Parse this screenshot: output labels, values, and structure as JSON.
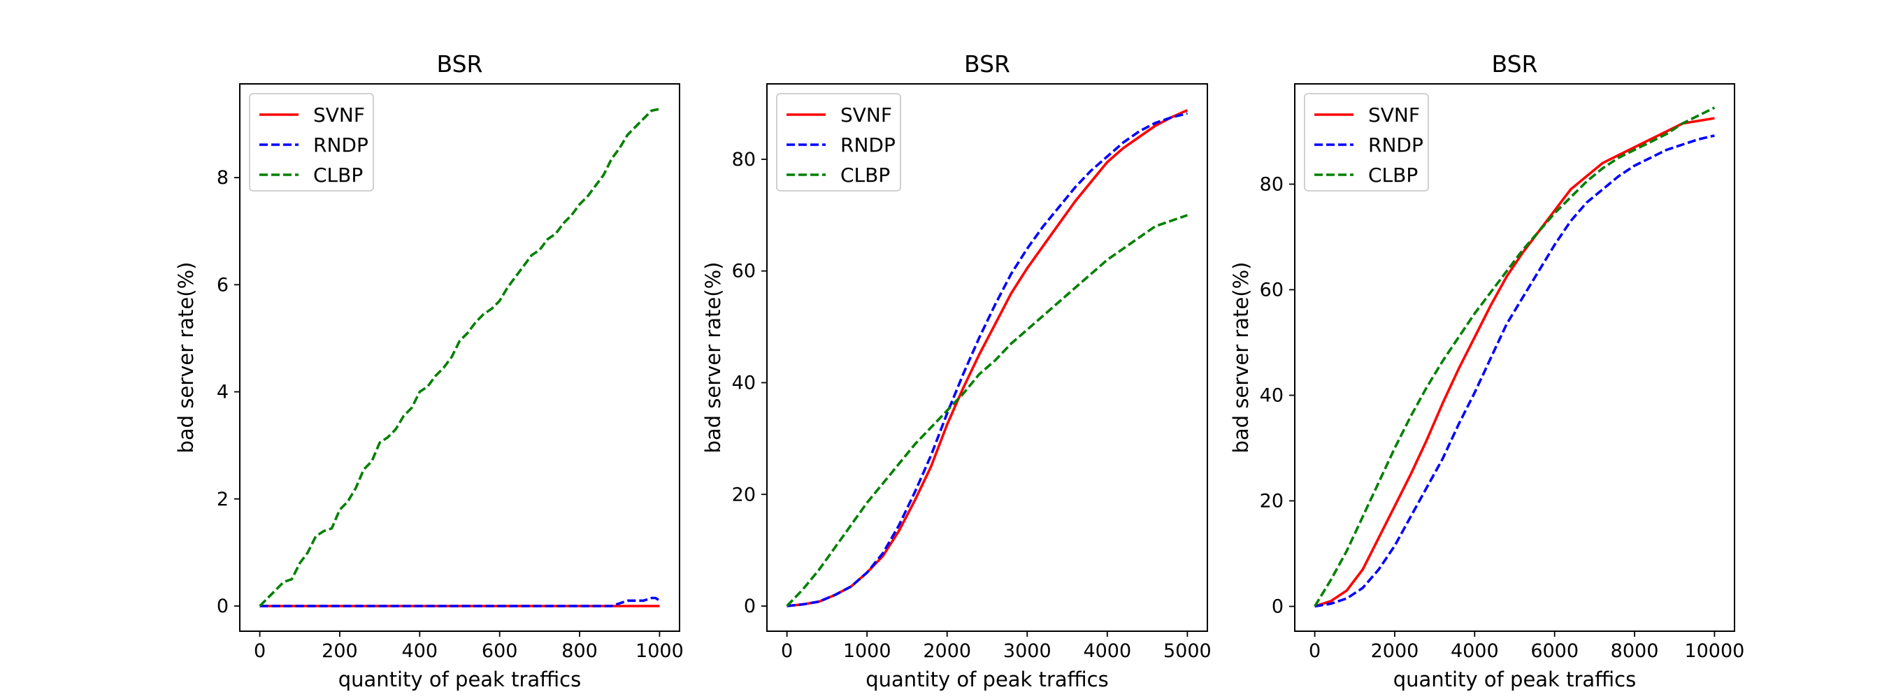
{
  "chart_data": [
    {
      "type": "line",
      "title": "BSR",
      "xlabel": "quantity of peak traffics",
      "ylabel": "bad server rate(%)",
      "xlim": [
        -50,
        1050
      ],
      "ylim": [
        -0.47,
        9.75
      ],
      "xticks": [
        0,
        200,
        400,
        600,
        800,
        1000
      ],
      "yticks": [
        0,
        2,
        4,
        6,
        8
      ],
      "legend": "top-left",
      "series": [
        {
          "name": "SVNF",
          "color": "#ff0000",
          "dash": "solid",
          "x": [
            0,
            100,
            200,
            300,
            400,
            500,
            600,
            700,
            800,
            900,
            1000
          ],
          "y": [
            0,
            0,
            0,
            0,
            0,
            0,
            0,
            0,
            0,
            0,
            0
          ]
        },
        {
          "name": "RNDP",
          "color": "#0000ff",
          "dash": "dashed",
          "x": [
            0,
            100,
            200,
            300,
            400,
            500,
            600,
            700,
            800,
            880,
            900,
            920,
            960,
            980,
            990,
            1000
          ],
          "y": [
            0,
            0,
            0,
            0,
            0,
            0,
            0,
            0,
            0,
            0,
            0.05,
            0.1,
            0.1,
            0.15,
            0.15,
            0.1
          ]
        },
        {
          "name": "CLBP",
          "color": "#008000",
          "dash": "dashed",
          "x": [
            0,
            20,
            40,
            60,
            80,
            100,
            120,
            140,
            160,
            180,
            200,
            220,
            240,
            260,
            280,
            300,
            320,
            340,
            360,
            380,
            400,
            420,
            440,
            460,
            480,
            500,
            520,
            540,
            560,
            580,
            600,
            620,
            640,
            660,
            680,
            700,
            720,
            740,
            760,
            780,
            800,
            820,
            840,
            860,
            880,
            900,
            920,
            940,
            960,
            980,
            1000
          ],
          "y": [
            0,
            0.15,
            0.3,
            0.45,
            0.5,
            0.8,
            1.0,
            1.3,
            1.4,
            1.45,
            1.8,
            1.95,
            2.2,
            2.55,
            2.7,
            3.05,
            3.15,
            3.3,
            3.55,
            3.7,
            4.0,
            4.1,
            4.3,
            4.45,
            4.65,
            4.95,
            5.1,
            5.3,
            5.45,
            5.55,
            5.7,
            5.95,
            6.15,
            6.35,
            6.55,
            6.65,
            6.85,
            6.95,
            7.15,
            7.3,
            7.5,
            7.65,
            7.85,
            8.05,
            8.35,
            8.55,
            8.8,
            8.95,
            9.1,
            9.25,
            9.28
          ]
        }
      ]
    },
    {
      "type": "line",
      "title": "BSR",
      "xlabel": "quantity of peak traffics",
      "ylabel": "bad server rate(%)",
      "xlim": [
        -250,
        5250
      ],
      "ylim": [
        -4.5,
        93.5
      ],
      "xticks": [
        0,
        1000,
        2000,
        3000,
        4000,
        5000
      ],
      "yticks": [
        0,
        20,
        40,
        60,
        80
      ],
      "legend": "top-left",
      "series": [
        {
          "name": "SVNF",
          "color": "#ff0000",
          "dash": "solid",
          "x": [
            0,
            200,
            400,
            600,
            800,
            1000,
            1200,
            1400,
            1600,
            1800,
            2000,
            2200,
            2400,
            2600,
            2800,
            3000,
            3200,
            3400,
            3600,
            3800,
            4000,
            4200,
            4400,
            4600,
            4800,
            5000
          ],
          "y": [
            0,
            0.3,
            0.8,
            2.0,
            3.5,
            6.0,
            9.0,
            13.5,
            19.0,
            25.0,
            32.5,
            39.0,
            45.0,
            50.5,
            56.0,
            60.5,
            64.5,
            68.5,
            72.5,
            76.0,
            79.5,
            82.0,
            84.0,
            86.0,
            87.5,
            88.8
          ]
        },
        {
          "name": "RNDP",
          "color": "#0000ff",
          "dash": "dashed",
          "x": [
            0,
            200,
            400,
            600,
            800,
            1000,
            1200,
            1400,
            1600,
            1800,
            2000,
            2200,
            2400,
            2600,
            2800,
            3000,
            3200,
            3400,
            3600,
            3800,
            4000,
            4200,
            4400,
            4600,
            4800,
            5000
          ],
          "y": [
            0,
            0.3,
            0.8,
            2.0,
            3.5,
            6.0,
            9.5,
            14.5,
            20.5,
            27.0,
            34.5,
            41.5,
            48.0,
            54.0,
            59.5,
            64.0,
            68.0,
            71.5,
            75.0,
            78.0,
            80.5,
            83.0,
            85.0,
            86.5,
            87.5,
            88.2
          ]
        },
        {
          "name": "CLBP",
          "color": "#008000",
          "dash": "dashed",
          "x": [
            0,
            200,
            400,
            600,
            800,
            1000,
            1200,
            1400,
            1600,
            1800,
            2000,
            2200,
            2400,
            2600,
            2800,
            3000,
            3200,
            3400,
            3600,
            3800,
            4000,
            4200,
            4400,
            4600,
            4800,
            5000
          ],
          "y": [
            0,
            3.0,
            6.5,
            10.5,
            14.5,
            18.5,
            22.0,
            25.5,
            29.0,
            32.0,
            35.0,
            38.0,
            41.5,
            44.0,
            47.0,
            49.5,
            52.0,
            54.5,
            57.0,
            59.5,
            62.0,
            64.0,
            66.0,
            68.0,
            69.0,
            70.0
          ]
        }
      ]
    },
    {
      "type": "line",
      "title": "BSR",
      "xlabel": "quantity of peak traffics",
      "ylabel": "bad server rate(%)",
      "xlim": [
        -500,
        10500
      ],
      "ylim": [
        -4.7,
        99.0
      ],
      "xticks": [
        0,
        2000,
        4000,
        6000,
        8000,
        10000
      ],
      "yticks": [
        0,
        20,
        40,
        60,
        80
      ],
      "legend": "top-left",
      "series": [
        {
          "name": "SVNF",
          "color": "#ff0000",
          "dash": "solid",
          "x": [
            0,
            400,
            800,
            1200,
            1600,
            2000,
            2400,
            2800,
            3200,
            3600,
            4000,
            4400,
            4800,
            5200,
            5600,
            6000,
            6400,
            6800,
            7200,
            7600,
            8000,
            8400,
            8800,
            9200,
            9600,
            10000
          ],
          "y": [
            0,
            1.0,
            3.0,
            7.0,
            13.0,
            19.0,
            25.0,
            31.5,
            38.5,
            45.0,
            51.0,
            57.0,
            62.5,
            67.0,
            71.0,
            75.0,
            79.0,
            81.5,
            84.0,
            85.5,
            87.0,
            88.5,
            90.0,
            91.5,
            92.0,
            92.5
          ]
        },
        {
          "name": "RNDP",
          "color": "#0000ff",
          "dash": "dashed",
          "x": [
            0,
            400,
            800,
            1200,
            1600,
            2000,
            2400,
            2800,
            3200,
            3600,
            4000,
            4400,
            4800,
            5200,
            5600,
            6000,
            6400,
            6800,
            7200,
            7600,
            8000,
            8400,
            8800,
            9200,
            9600,
            10000
          ],
          "y": [
            0,
            0.5,
            1.5,
            3.5,
            7.0,
            11.5,
            17.0,
            22.5,
            28.0,
            34.5,
            40.5,
            47.0,
            53.5,
            58.5,
            63.5,
            68.5,
            73.0,
            76.5,
            79.0,
            81.5,
            83.5,
            85.0,
            86.5,
            87.5,
            88.5,
            89.2
          ]
        },
        {
          "name": "CLBP",
          "color": "#008000",
          "dash": "dashed",
          "x": [
            0,
            400,
            800,
            1200,
            1600,
            2000,
            2400,
            2800,
            3200,
            3600,
            4000,
            4400,
            4800,
            5200,
            5600,
            6000,
            6400,
            6800,
            7200,
            7600,
            8000,
            8400,
            8800,
            9200,
            9600,
            10000
          ],
          "y": [
            0,
            5.0,
            10.5,
            17.0,
            23.5,
            30.0,
            36.0,
            41.5,
            46.5,
            51.0,
            55.5,
            59.5,
            63.5,
            67.5,
            71.0,
            74.5,
            77.5,
            80.5,
            83.0,
            85.0,
            86.5,
            88.0,
            89.5,
            91.5,
            93.0,
            94.5
          ]
        }
      ]
    }
  ]
}
